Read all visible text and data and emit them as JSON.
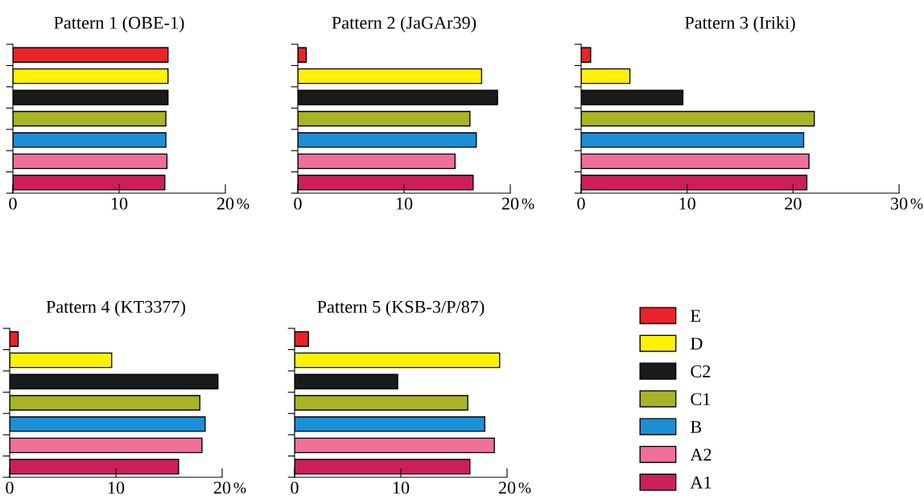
{
  "chart_data": [
    {
      "type": "bar",
      "orientation": "horizontal",
      "title": "Pattern 1 (OBE-1)",
      "xlabel": "%",
      "categories": [
        null
      ],
      "xlim": [
        0,
        20
      ],
      "xticks": [
        0,
        10,
        20
      ],
      "tick_labels": "x",
      "series": [
        {
          "color": "#e8232b",
          "values": [
            14.6
          ]
        },
        {
          "color": "#fff200",
          "values": [
            14.6
          ]
        },
        {
          "color": "#1a1a1a",
          "values": [
            14.6
          ]
        },
        {
          "color": "#a8b423",
          "values": [
            14.4
          ]
        },
        {
          "color": "#1b8fd6",
          "values": [
            14.4
          ]
        },
        {
          "color": "#f0709a",
          "values": [
            14.5
          ]
        },
        {
          "color": "#cc1f5a",
          "values": [
            14.3
          ]
        }
      ]
    },
    {
      "type": "bar",
      "orientation": "horizontal",
      "title": "Pattern 2 (JaGAr39)",
      "xlabel": "%",
      "categories": [
        null
      ],
      "xlim": [
        0,
        20
      ],
      "xticks": [
        0,
        10,
        20
      ],
      "tick_labels": "x",
      "series": [
        {
          "color": "#e8232b",
          "values": [
            0.8
          ]
        },
        {
          "color": "#fff200",
          "values": [
            17.3
          ]
        },
        {
          "color": "#1a1a1a",
          "values": [
            18.8
          ]
        },
        {
          "color": "#a8b423",
          "values": [
            16.2
          ]
        },
        {
          "color": "#1b8fd6",
          "values": [
            16.8
          ]
        },
        {
          "color": "#f0709a",
          "values": [
            14.8
          ]
        },
        {
          "color": "#cc1f5a",
          "values": [
            16.5
          ]
        }
      ]
    },
    {
      "type": "bar",
      "orientation": "horizontal",
      "title": "Pattern 3 (Iriki)",
      "xlabel": "%",
      "categories": [
        null
      ],
      "xlim": [
        0,
        30
      ],
      "xticks": [
        0,
        10,
        20,
        30
      ],
      "tick_labels": "x",
      "series": [
        {
          "color": "#e8232b",
          "values": [
            0.9
          ]
        },
        {
          "color": "#fff200",
          "values": [
            4.6
          ]
        },
        {
          "color": "#1a1a1a",
          "values": [
            9.6
          ]
        },
        {
          "color": "#a8b423",
          "values": [
            22.0
          ]
        },
        {
          "color": "#1b8fd6",
          "values": [
            21.0
          ]
        },
        {
          "color": "#f0709a",
          "values": [
            21.5
          ]
        },
        {
          "color": "#cc1f5a",
          "values": [
            21.3
          ]
        }
      ]
    },
    {
      "type": "bar",
      "orientation": "horizontal",
      "title": "Pattern 4 (KT3377)",
      "xlabel": "%",
      "categories": [
        null
      ],
      "xlim": [
        0,
        20
      ],
      "xticks": [
        0,
        10,
        20
      ],
      "tick_labels": "x",
      "series": [
        {
          "color": "#e8232b",
          "values": [
            0.8
          ]
        },
        {
          "color": "#fff200",
          "values": [
            9.6
          ]
        },
        {
          "color": "#1a1a1a",
          "values": [
            19.6
          ]
        },
        {
          "color": "#a8b423",
          "values": [
            17.9
          ]
        },
        {
          "color": "#1b8fd6",
          "values": [
            18.4
          ]
        },
        {
          "color": "#f0709a",
          "values": [
            18.1
          ]
        },
        {
          "color": "#cc1f5a",
          "values": [
            15.9
          ]
        }
      ]
    },
    {
      "type": "bar",
      "orientation": "horizontal",
      "title": "Pattern 5 (KSB-3/P/87)",
      "xlabel": "%",
      "categories": [
        null
      ],
      "xlim": [
        0,
        20
      ],
      "xticks": [
        0,
        10,
        20
      ],
      "tick_labels": "x",
      "legend": "right",
      "series": [
        {
          "name": "E",
          "color": "#e8232b",
          "values": [
            1.3
          ]
        },
        {
          "name": "D",
          "color": "#fff200",
          "values": [
            19.3
          ]
        },
        {
          "name": "C2",
          "color": "#1a1a1a",
          "values": [
            9.7
          ]
        },
        {
          "name": "C1",
          "color": "#a8b423",
          "values": [
            16.3
          ]
        },
        {
          "name": "B",
          "color": "#1b8fd6",
          "values": [
            17.9
          ]
        },
        {
          "name": "A2",
          "color": "#f0709a",
          "values": [
            18.8
          ]
        },
        {
          "name": "A1",
          "color": "#cc1f5a",
          "values": [
            16.5
          ]
        }
      ]
    }
  ]
}
